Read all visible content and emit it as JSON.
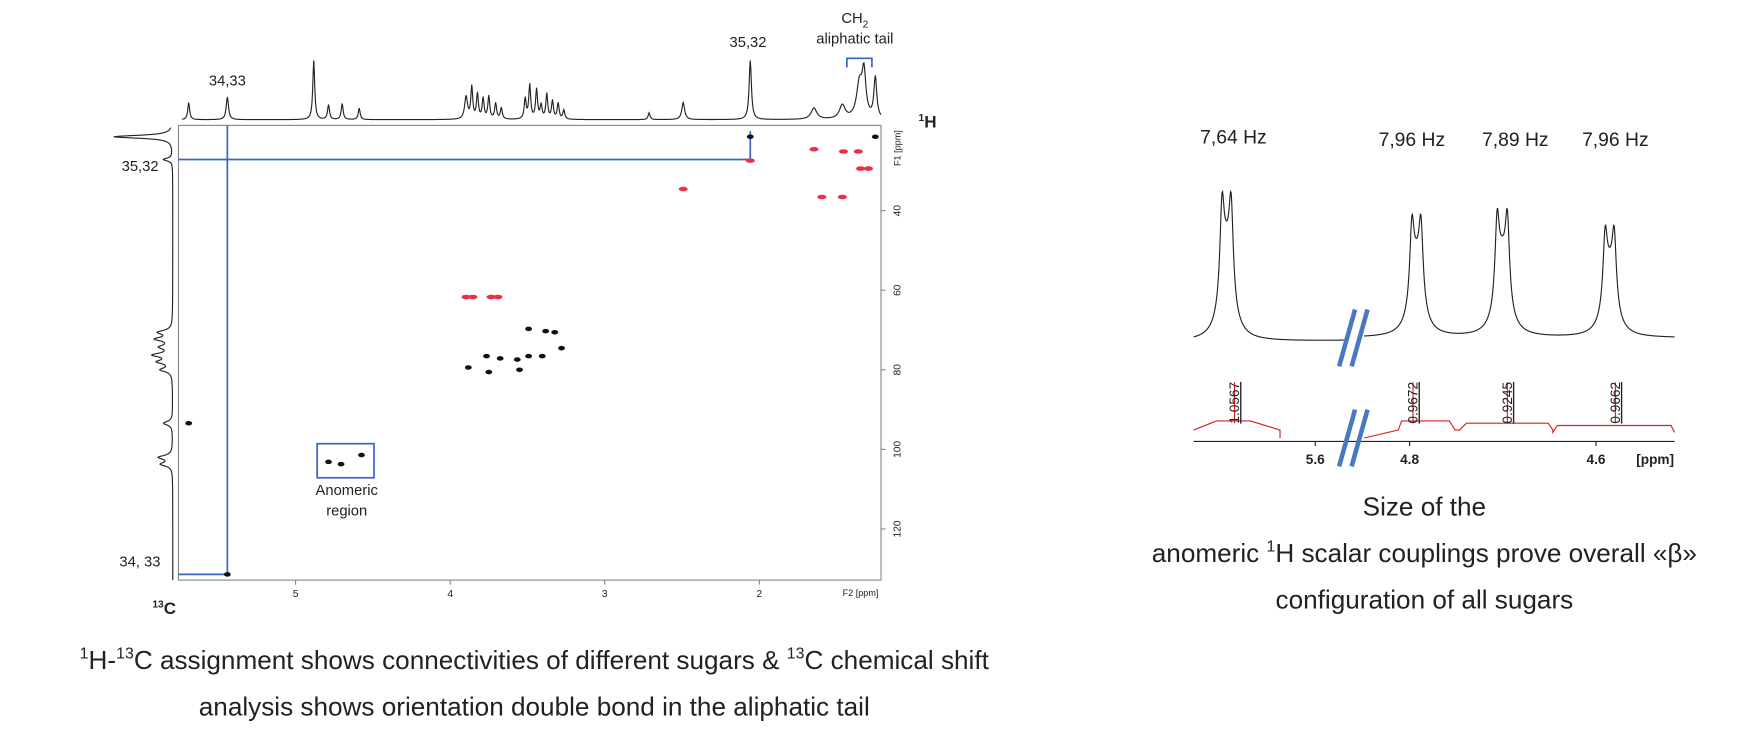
{
  "hsqc": {
    "top_labels": {
      "left": "34,33",
      "right": "35,32",
      "ch": "CH",
      "ch_sub": "2",
      "tail": "aliphatic tail"
    },
    "h_axis": {
      "sup": "1",
      "text": "H"
    },
    "c_axis": {
      "sup": "13",
      "text": "C"
    },
    "left_labels": {
      "top": "35,32",
      "bottom": "34, 33"
    },
    "x_ticks": [
      "5",
      "4",
      "3",
      "2"
    ],
    "x_unit": "F2 [ppm]",
    "y_ticks": [
      "40",
      "60",
      "80",
      "100",
      "120"
    ],
    "y_unit": "F1 [ppm]",
    "box_label": [
      "Anomeric",
      "region"
    ],
    "caption": {
      "sup1": "1",
      "t1": "H-",
      "sup2": "13",
      "t2": "C assignment shows connectivities of different sugars & ",
      "sup3": "13",
      "t3": "C chemical shift",
      "line2": "analysis shows orientation double bond in the aliphatic tail"
    }
  },
  "proton": {
    "couplings": [
      "7,64 Hz",
      "7,96 Hz",
      "7,89 Hz",
      "7,96 Hz"
    ],
    "integrals": [
      "1.0567",
      "0.9672",
      "0.9245",
      "0.9662"
    ],
    "x_ticks": [
      "5.6",
      "4.8",
      "4.6"
    ],
    "x_unit": "[ppm]",
    "caption": {
      "line1": "Size of the",
      "pre": "anomeric ",
      "sup": "1",
      "post": "H scalar couplings prove overall «β»",
      "line3": "configuration of all sugars"
    }
  }
}
